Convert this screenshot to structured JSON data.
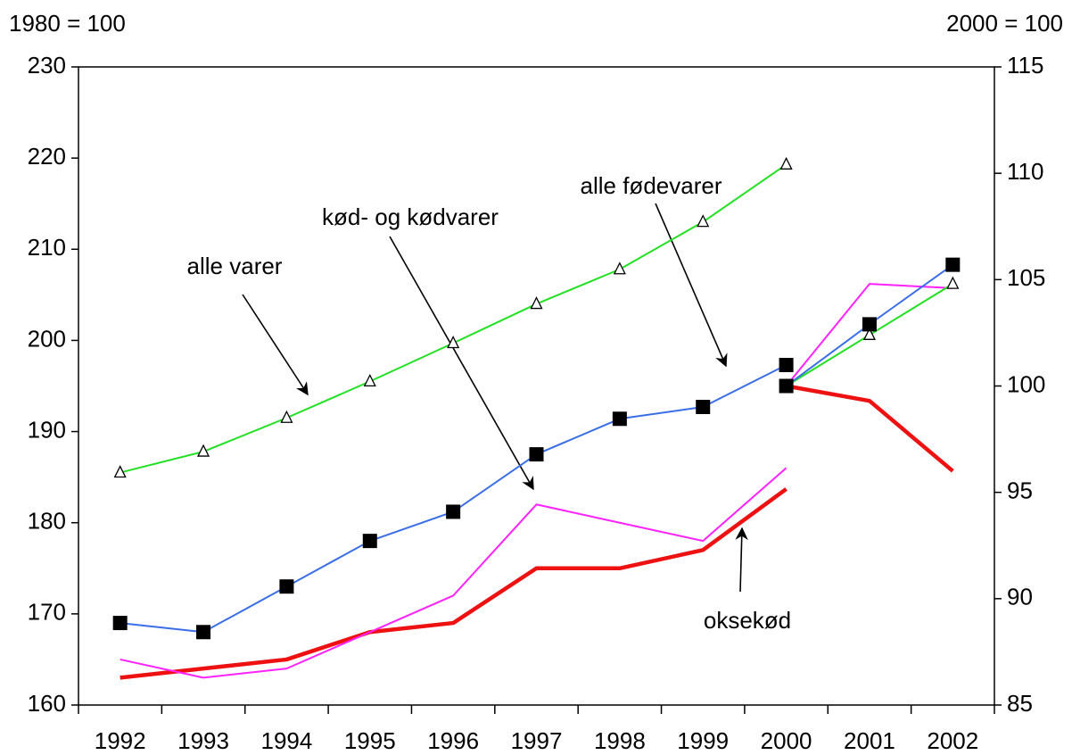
{
  "chart_data": {
    "type": "line",
    "y_label": "1980 = 100",
    "y2_label": "2000 = 100",
    "categories": [
      "1992",
      "1993",
      "1994",
      "1995",
      "1996",
      "1997",
      "1998",
      "1999",
      "2000",
      "2001",
      "2002"
    ],
    "ylim": [
      160,
      230
    ],
    "yticks": [
      160,
      170,
      180,
      190,
      200,
      210,
      220,
      230
    ],
    "y2lim": [
      85,
      115
    ],
    "y2ticks": [
      85,
      90,
      95,
      100,
      105,
      110,
      115
    ],
    "series": [
      {
        "name": "alle varer",
        "color": "#22e022",
        "marker": "open-triangle",
        "values": [
          185.5,
          187.8,
          191.5,
          195.5,
          199.7,
          204,
          207.8,
          213,
          219.3,
          null,
          null
        ],
        "values_y2": [
          null,
          null,
          null,
          null,
          null,
          null,
          null,
          null,
          100,
          102.4,
          104.8
        ]
      },
      {
        "name": "alle fødevarer",
        "color": "#3a6ee8",
        "marker": "filled-square",
        "values": [
          169,
          168,
          173,
          178,
          181.2,
          187.5,
          191.4,
          192.7,
          197.3,
          null,
          null
        ],
        "values_y2": [
          null,
          null,
          null,
          null,
          null,
          null,
          null,
          null,
          100,
          102.9,
          105.7
        ]
      },
      {
        "name": "kød- og kødvarer",
        "color": "#ff22ff",
        "marker": "none",
        "values": [
          165,
          163,
          164,
          168,
          172,
          182,
          180,
          178,
          186,
          null,
          null
        ],
        "values_y2": [
          null,
          null,
          null,
          null,
          null,
          null,
          null,
          null,
          100,
          104.8,
          104.6
        ]
      },
      {
        "name": "oksekød",
        "color": "#ee1111",
        "marker": "none",
        "values": [
          163,
          164,
          165,
          168,
          169,
          175,
          175,
          177,
          183.7,
          null,
          null
        ],
        "values_y2": [
          null,
          null,
          null,
          null,
          null,
          null,
          null,
          null,
          100,
          99.3,
          96
        ]
      }
    ]
  }
}
